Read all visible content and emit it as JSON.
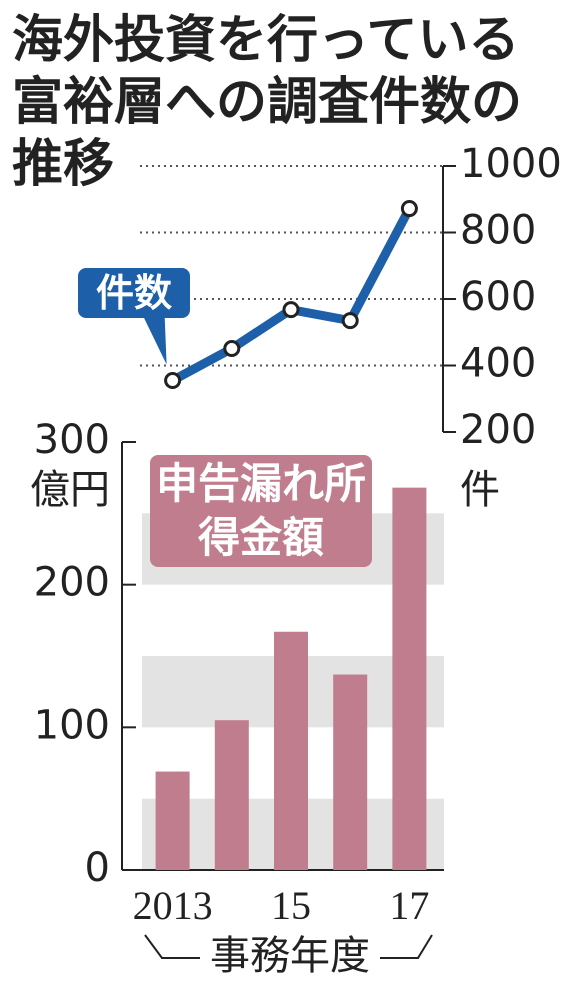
{
  "title": "海外投資を行っている富裕層への調査件数の推移",
  "chart_data": [
    {
      "type": "line",
      "series": [
        {
          "name": "件数",
          "color": "#1d5fa8",
          "values": [
            355,
            451,
            568,
            535,
            872
          ]
        }
      ],
      "ylim": [
        200,
        1000
      ],
      "yticks": [
        200,
        400,
        600,
        800,
        1000
      ],
      "y_unit": "件",
      "grid": true
    },
    {
      "type": "bar",
      "categories": [
        "2013",
        null,
        "15",
        null,
        "17"
      ],
      "series": [
        {
          "name": "申告漏れ所得金額",
          "color": "#c07d8d",
          "values": [
            69,
            105,
            167,
            137,
            268
          ]
        }
      ],
      "ylim": [
        0,
        300
      ],
      "yticks": [
        0,
        100,
        200,
        300
      ],
      "y_unit": "億円",
      "xlabel": "事務年度",
      "grid": true
    }
  ]
}
